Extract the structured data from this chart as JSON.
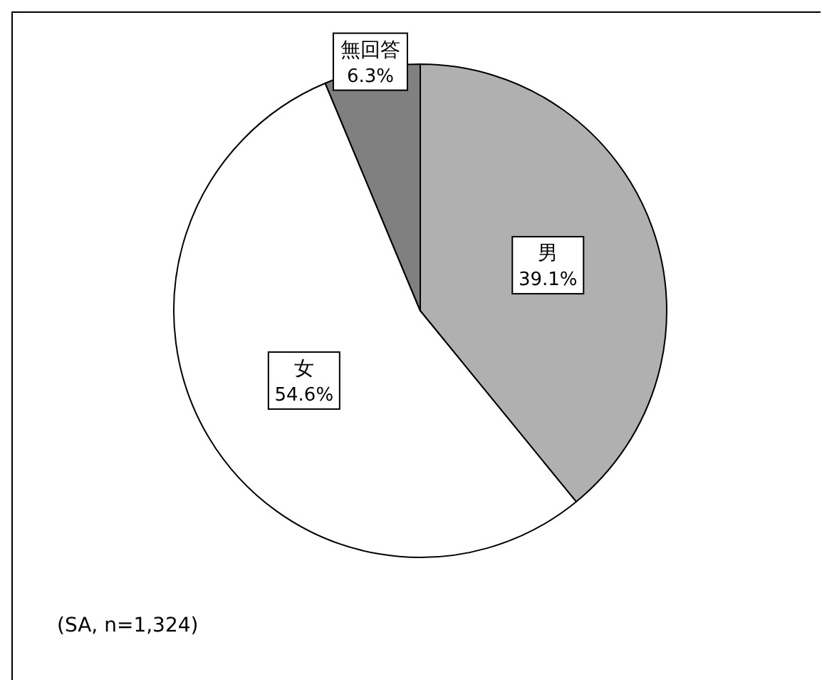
{
  "chart_data": {
    "type": "pie",
    "categories": [
      "男",
      "女",
      "無回答"
    ],
    "values": [
      39.1,
      54.6,
      6.3
    ],
    "colors": [
      "#b0b0b0",
      "#ffffff",
      "#808080"
    ],
    "value_labels": [
      "39.1%",
      "54.6%",
      "6.3%"
    ],
    "annotations": [
      "(SA, n=1,324)"
    ]
  }
}
